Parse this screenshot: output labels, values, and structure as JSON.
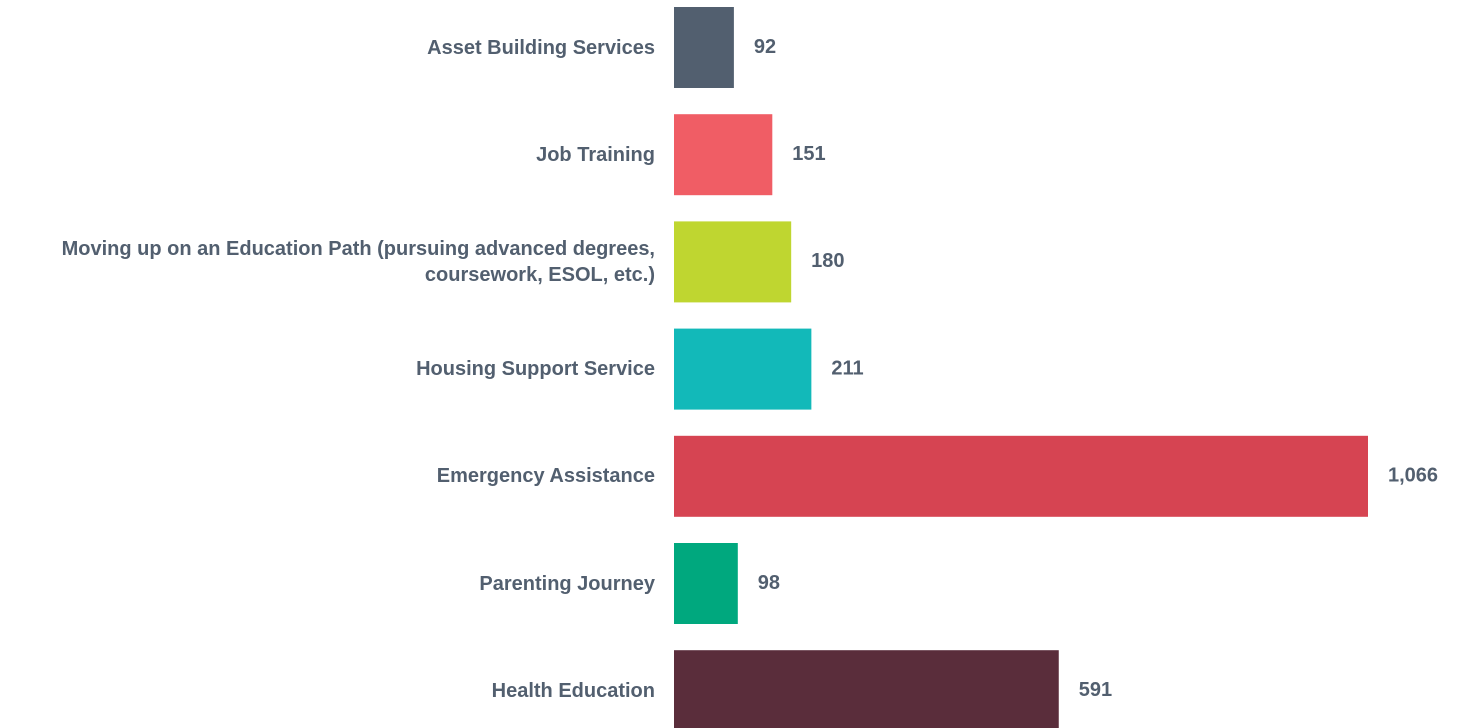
{
  "chart_data": {
    "type": "bar",
    "orientation": "horizontal",
    "categories": [
      "Asset Building Services",
      "Job Training",
      "Moving up on an Education Path (pursuing advanced degrees, coursework, ESOL, etc.)",
      "Housing Support Service",
      "Emergency Assistance",
      "Parenting Journey",
      "Health Education"
    ],
    "values": [
      92,
      151,
      180,
      211,
      1066,
      98,
      591
    ],
    "value_labels": [
      "92",
      "151",
      "180",
      "211",
      "1,066",
      "98",
      "591"
    ],
    "colors": [
      "#525f6f",
      "#f05d65",
      "#bfd630",
      "#12b9b9",
      "#d64452",
      "#00a87e",
      "#5a2d3b"
    ]
  }
}
